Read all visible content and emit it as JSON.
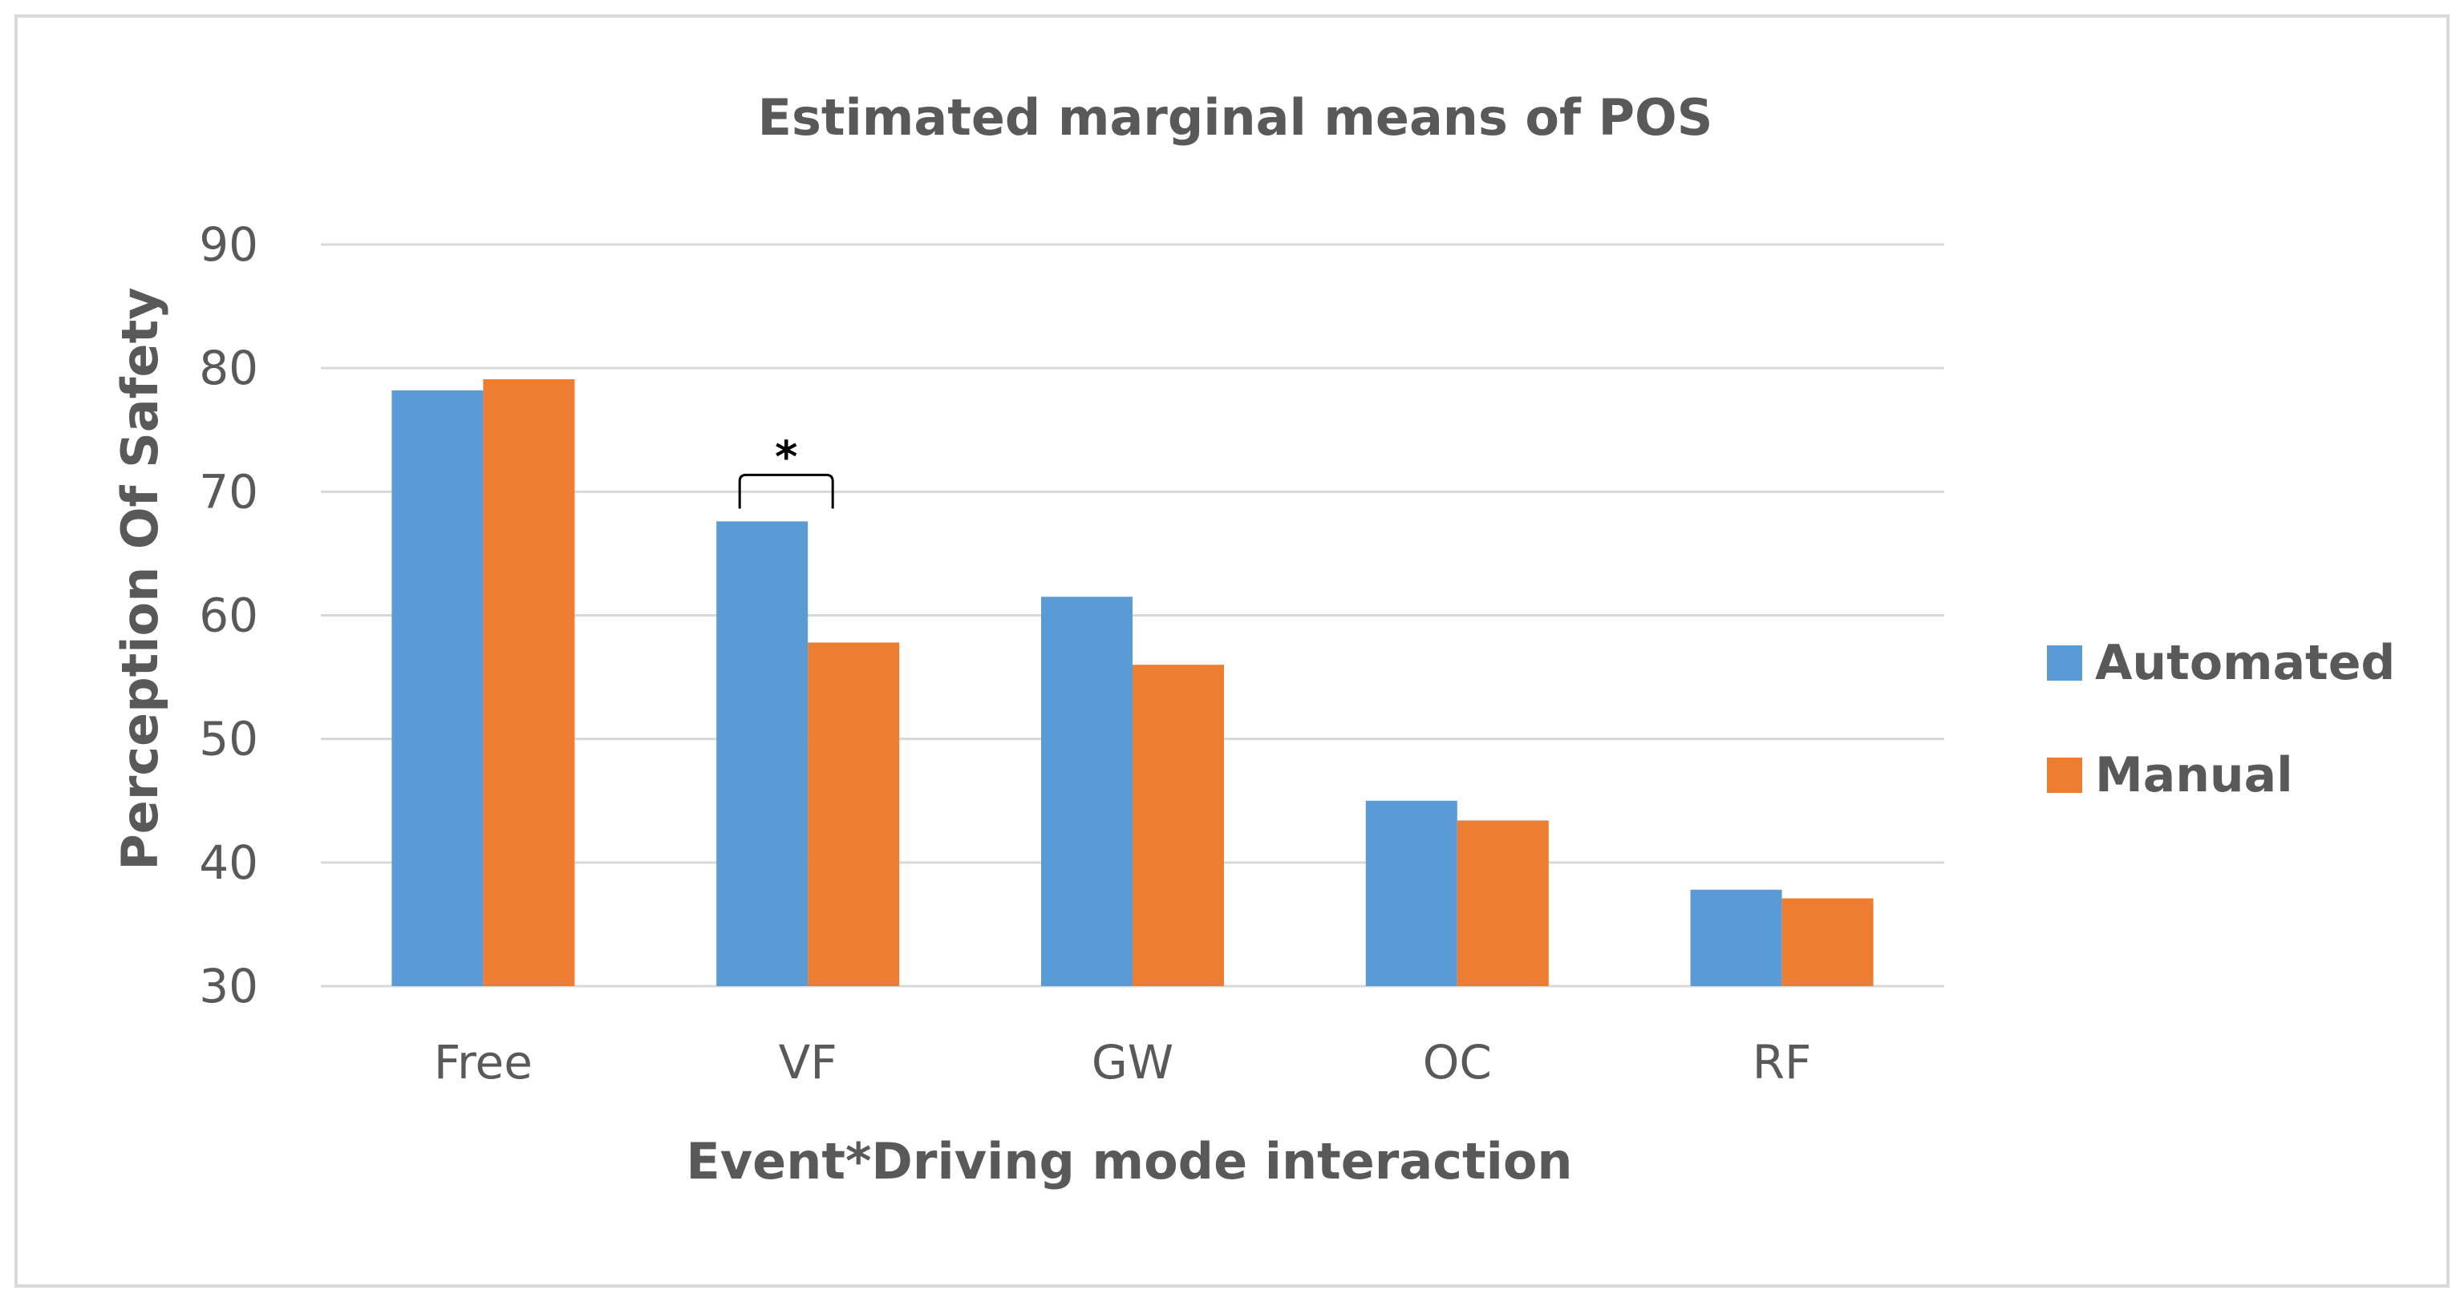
{
  "chart_data": {
    "type": "bar",
    "title": "Estimated marginal means of POS",
    "xlabel": "Event*Driving mode interaction",
    "ylabel": "Perception Of Safety",
    "ylim": [
      30,
      90
    ],
    "yticks": [
      30,
      40,
      50,
      60,
      70,
      80,
      90
    ],
    "grid": true,
    "legend_position": "right",
    "categories": [
      "Free",
      "VF",
      "GW",
      "OC",
      "RF"
    ],
    "series": [
      {
        "name": "Automated",
        "color": "#5B9BD5",
        "values": [
          78.2,
          67.6,
          61.5,
          45.0,
          37.8
        ]
      },
      {
        "name": "Manual",
        "color": "#ED7D31",
        "values": [
          79.1,
          57.8,
          56.0,
          43.4,
          37.1
        ]
      }
    ],
    "annotations": [
      {
        "text": "*",
        "category": "VF",
        "type": "significance-bracket"
      }
    ],
    "colors": {
      "border": "#D9D9D9",
      "grid": "#D9D9D9",
      "text": "#595959"
    }
  }
}
